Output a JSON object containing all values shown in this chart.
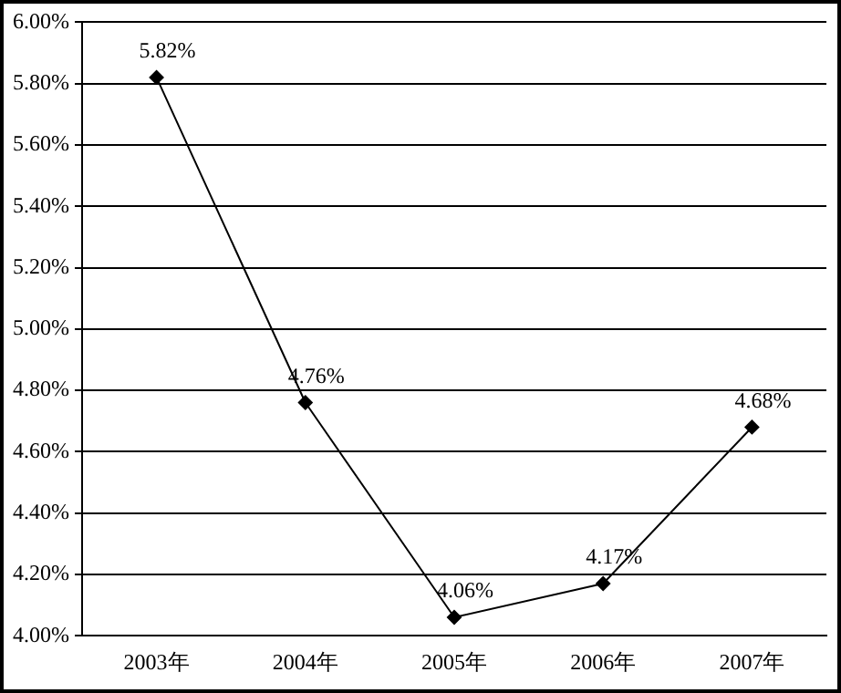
{
  "chart_data": {
    "type": "line",
    "categories": [
      "2003年",
      "2004年",
      "2005年",
      "2006年",
      "2007年"
    ],
    "series": [
      {
        "color": "#000000",
        "values": [
          5.82,
          4.76,
          4.06,
          4.17,
          4.68
        ],
        "value_labels": [
          "5.82%",
          "4.76%",
          "4.06%",
          "4.17%",
          "4.68%"
        ]
      }
    ],
    "ylim": [
      4,
      6
    ],
    "yticks": [
      {
        "value": 4,
        "label": "4.00%"
      },
      {
        "value": 4.2,
        "label": "4.20%"
      },
      {
        "value": 4.4,
        "label": "4.40%"
      },
      {
        "value": 4.6,
        "label": "4.60%"
      },
      {
        "value": 4.8,
        "label": "4.80%"
      },
      {
        "value": 5,
        "label": "5.00%"
      },
      {
        "value": 5.2,
        "label": "5.20%"
      },
      {
        "value": 5.4,
        "label": "5.40%"
      },
      {
        "value": 5.6,
        "label": "5.60%"
      },
      {
        "value": 5.8,
        "label": "5.80%"
      },
      {
        "value": 6,
        "label": "6.00%"
      }
    ],
    "grid": "y",
    "legend": false,
    "marker": "diamond",
    "line_style": "solid"
  }
}
